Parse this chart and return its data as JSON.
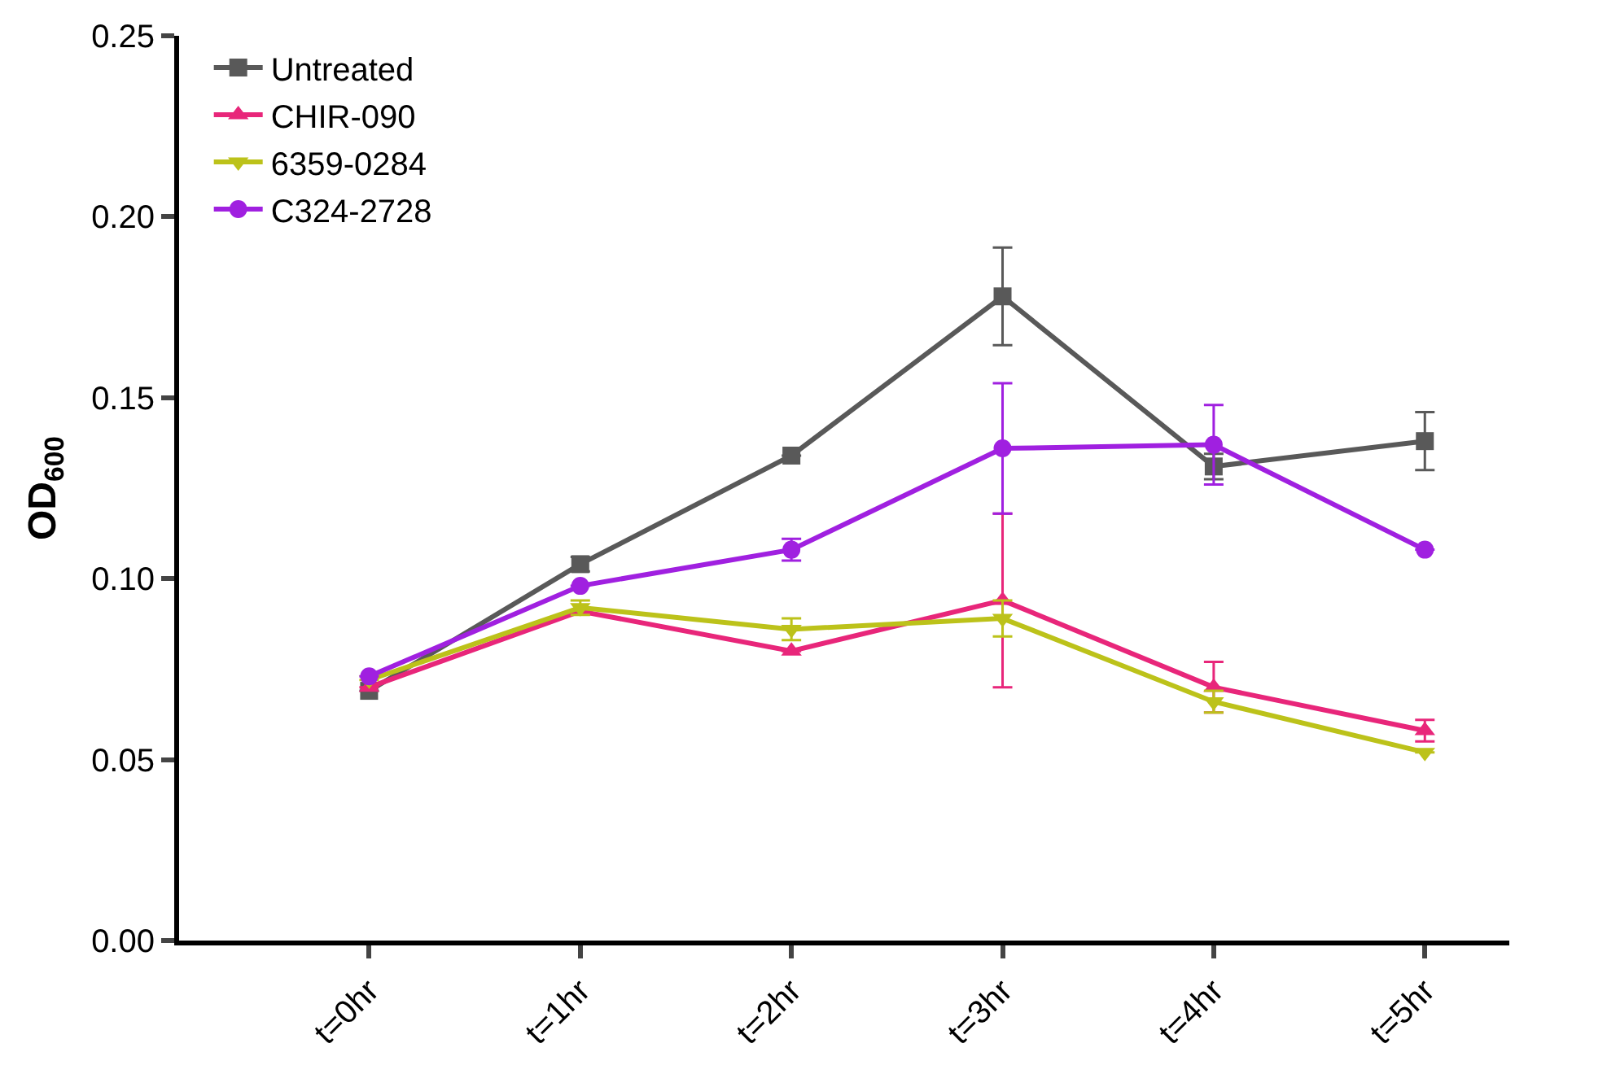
{
  "chart_data": {
    "type": "line",
    "ylabel": "OD$_{600}$",
    "categories": [
      "t=0hr",
      "t=1hr",
      "t=2hr",
      "t=3hr",
      "t=4hr",
      "t=5hr"
    ],
    "series": [
      {
        "name": "Untreated",
        "color": "#595959",
        "marker": "square",
        "values": [
          0.069,
          0.104,
          0.134,
          0.178,
          0.131,
          0.138
        ],
        "errors": [
          null,
          0.002,
          null,
          0.0135,
          0.0035,
          0.008
        ]
      },
      {
        "name": "CHIR-090",
        "color": "#e8267a",
        "marker": "triangle",
        "values": [
          0.07,
          0.091,
          0.08,
          0.094,
          0.07,
          0.058
        ],
        "errors": [
          null,
          null,
          null,
          0.024,
          0.007,
          0.003
        ]
      },
      {
        "name": "6359-0284",
        "color": "#bcc21a",
        "marker": "triangle-down",
        "values": [
          0.072,
          0.092,
          0.086,
          0.089,
          0.066,
          0.052
        ],
        "errors": [
          null,
          0.002,
          0.003,
          0.005,
          0.003,
          null
        ]
      },
      {
        "name": "C324-2728",
        "color": "#a020e0",
        "marker": "circle",
        "values": [
          0.073,
          0.098,
          0.108,
          0.136,
          0.137,
          0.108
        ],
        "errors": [
          null,
          null,
          0.003,
          0.018,
          0.011,
          null
        ]
      }
    ],
    "ylim": [
      0,
      0.25
    ],
    "yticks": [
      {
        "value": 0,
        "label": "0.00"
      },
      0.05,
      {
        "value": 0.1,
        "label": "0.10"
      },
      0.15,
      {
        "value": 0.2,
        "label": "0.20"
      },
      0.25
    ],
    "legend": "top left",
    "line_style": "solid"
  }
}
